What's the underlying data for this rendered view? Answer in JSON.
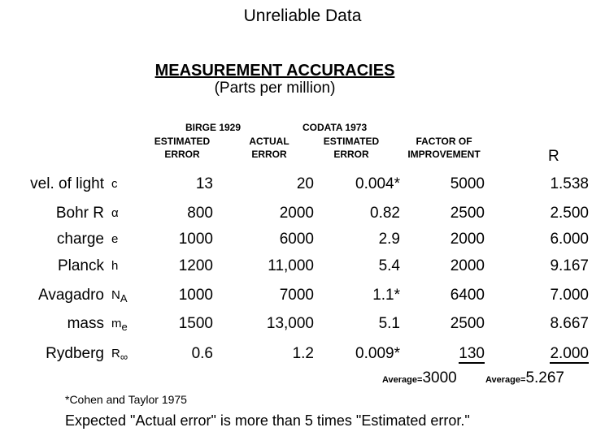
{
  "title": "Unreliable Data",
  "heading": "MEASUREMENT ACCURACIES",
  "subheading": "(Parts per million)",
  "group_headers": {
    "birge": "BIRGE 1929",
    "codata": "CODATA 1973"
  },
  "column_headers": {
    "estimated_error": [
      "ESTIMATED",
      "ERROR"
    ],
    "actual_error": [
      "ACTUAL",
      "ERROR"
    ],
    "codata_estimated_error": [
      "ESTIMATED",
      "ERROR"
    ],
    "factor": [
      "FACTOR OF",
      "IMPROVEMENT"
    ],
    "r": "R"
  },
  "rows": [
    {
      "label": "vel. of light",
      "symbol": "c",
      "est": "13",
      "actual": "20",
      "codata": "0.004*",
      "factor": "5000",
      "r": "1.538"
    },
    {
      "label": "Bohr R",
      "symbol": "α",
      "est": "800",
      "actual": "2000",
      "codata": "0.82",
      "factor": "2500",
      "r": "2.500"
    },
    {
      "label": "charge",
      "symbol": "e",
      "est": "1000",
      "actual": "6000",
      "codata": "2.9",
      "factor": "2000",
      "r": "6.000"
    },
    {
      "label": "Planck",
      "symbol": "h",
      "est": "1200",
      "actual": "11,000",
      "codata": "5.4",
      "factor": "2000",
      "r": "9.167"
    },
    {
      "label": "Avagadro",
      "symbol": "N",
      "symbol_sub": "A",
      "est": "1000",
      "actual": "7000",
      "codata": "1.1*",
      "factor": "6400",
      "r": "7.000"
    },
    {
      "label": "mass",
      "symbol": "m",
      "symbol_sub": "e",
      "est": "1500",
      "actual": "13,000",
      "codata": "5.1",
      "factor": "2500",
      "r": "8.667"
    },
    {
      "label": "Rydberg",
      "symbol": "R",
      "symbol_sub": "∞",
      "est": "0.6",
      "actual": "1.2",
      "codata": "0.009*",
      "factor": "130",
      "r": "2.000"
    }
  ],
  "averages": {
    "factor_label": "Average=",
    "factor_value": "3000",
    "r_label": "Average=",
    "r_value": "5.267"
  },
  "footnote": "*Cohen and Taylor 1975",
  "conclusion": "Expected \"Actual error\" is more than 5 times \"Estimated error.\""
}
